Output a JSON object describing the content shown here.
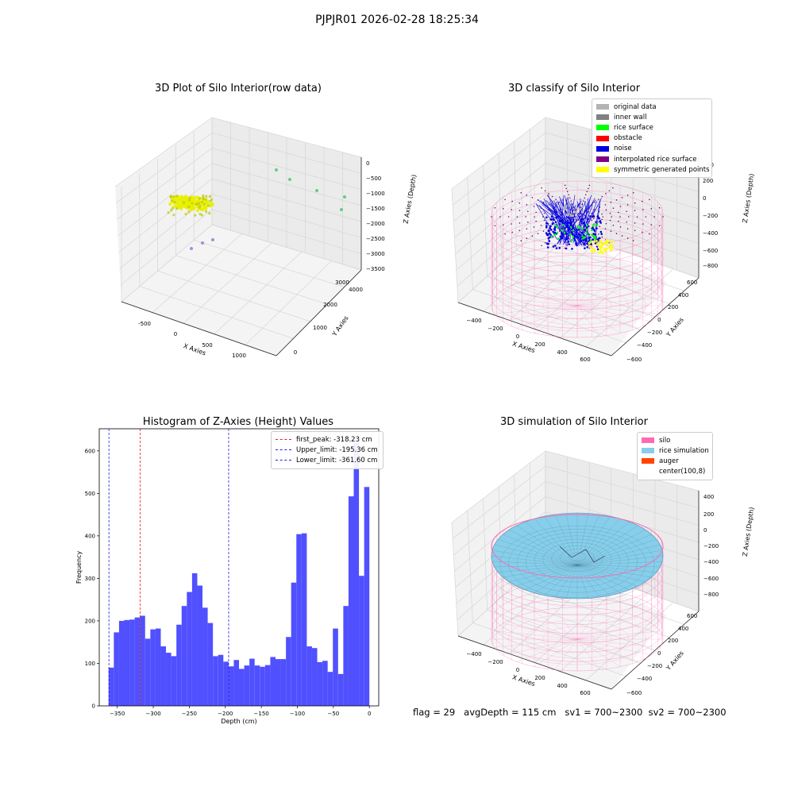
{
  "suptitle": "PJPJR01 2026-02-28 18:25:34",
  "footer": {
    "flag": "flag = 29",
    "avg_depth": "avgDepth = 115 cm",
    "sv1": "sv1 = 700~2300",
    "sv2": "sv2 = 700~2300"
  },
  "chart_data": [
    {
      "type": "scatter3d",
      "title": "3D Plot of Silo Interior(row data)",
      "xlabel": "X Axies",
      "ylabel": "Y Axies",
      "zlabel": "Z Axies (Depth)",
      "x_ticks": [
        "-500",
        "0",
        "500",
        "1000"
      ],
      "y_ticks": [
        "0",
        "1000",
        "2000",
        "3000",
        "4000"
      ],
      "z_ticks": [
        "0",
        "−500",
        "−1000",
        "−1500",
        "−2000",
        "−2500",
        "−3000",
        "−3500"
      ],
      "colors": {
        "rice": "#e8f000",
        "green_points": "#66cc88",
        "purple_points": "#b08ad0"
      }
    },
    {
      "type": "scatter3d",
      "title": "3D classify of Silo Interior",
      "xlabel": "X Axies",
      "ylabel": "Y Axies",
      "zlabel": "Z Axies (Depth)",
      "x_ticks": [
        "−400",
        "−200",
        "0",
        "200",
        "400",
        "600"
      ],
      "y_ticks": [
        "−600",
        "−400",
        "−200",
        "0",
        "200",
        "400",
        "600"
      ],
      "z_ticks": [
        "200",
        "0",
        "−200",
        "−400",
        "−600",
        "−800"
      ],
      "z_top_tick": "00",
      "legend": [
        {
          "label": "original data",
          "color": "#b3b3b3"
        },
        {
          "label": "inner wall",
          "color": "#808080"
        },
        {
          "label": "rice surface",
          "color": "#00ff00"
        },
        {
          "label": "obstacle",
          "color": "#ff0000"
        },
        {
          "label": "noise",
          "color": "#0000e0"
        },
        {
          "label": "interpolated rice surface",
          "color": "#800080"
        },
        {
          "label": "symmetric generated points",
          "color": "#ffff00"
        }
      ],
      "legend_loc": "upper right"
    },
    {
      "type": "bar",
      "title": "Histogram of Z-Axies (Height) Values",
      "xlabel": "Depth (cm)",
      "ylabel": "Frequency",
      "xlim": [
        -375,
        13
      ],
      "ylim": [
        0,
        652
      ],
      "x_ticks": [
        -350,
        -300,
        -250,
        -200,
        -150,
        -100,
        -50,
        0
      ],
      "y_ticks": [
        0,
        100,
        200,
        300,
        400,
        500,
        600
      ],
      "bin_start": -362,
      "bin_width": 7.24,
      "values": [
        90,
        173,
        200,
        202,
        203,
        208,
        212,
        158,
        180,
        182,
        140,
        125,
        117,
        191,
        235,
        268,
        312,
        283,
        231,
        195,
        117,
        120,
        104,
        93,
        108,
        87,
        95,
        111,
        95,
        92,
        96,
        115,
        110,
        110,
        162,
        290,
        404,
        406,
        140,
        136,
        103,
        106,
        80,
        182,
        75,
        235,
        493,
        620,
        306,
        515
      ],
      "bar_color": "#5050ff",
      "lines": [
        {
          "label": "first_peak: -318.23 cm",
          "x": -318.23,
          "color": "#e02020"
        },
        {
          "label": "Upper_limit: -195.36 cm",
          "x": -195.36,
          "color": "#2020e0"
        },
        {
          "label": "Lower_limit: -361.60 cm",
          "x": -361.6,
          "color": "#2020e0"
        }
      ],
      "legend_loc": "upper right"
    },
    {
      "type": "surface3d",
      "title": "3D simulation of Silo Interior",
      "xlabel": "X Axies",
      "ylabel": "Y Axies",
      "zlabel": "Z Axies (Depth)",
      "x_ticks": [
        "−400",
        "−200",
        "0",
        "200",
        "400",
        "600"
      ],
      "y_ticks": [
        "−600",
        "−400",
        "−200",
        "0",
        "200",
        "400",
        "600"
      ],
      "z_ticks": [
        "400",
        "200",
        "0",
        "−200",
        "−400",
        "−600",
        "−800"
      ],
      "legend": [
        {
          "label": "silo",
          "color": "#ff69b4"
        },
        {
          "label": "rice simulation",
          "color": "#87ceeb"
        },
        {
          "label": "auger",
          "color": "#ff4500"
        },
        {
          "label": "center(100,8)",
          "color": ""
        }
      ],
      "legend_loc": "upper right"
    }
  ]
}
